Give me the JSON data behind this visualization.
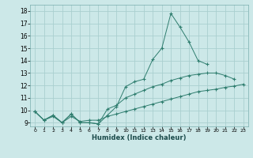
{
  "xlabel": "Humidex (Indice chaleur)",
  "line_color": "#2e7d6e",
  "bg_color": "#cce8e8",
  "grid_color": "#aacfcf",
  "xlim": [
    -0.5,
    23.5
  ],
  "ylim": [
    8.7,
    18.5
  ],
  "xticks": [
    0,
    1,
    2,
    3,
    4,
    5,
    6,
    7,
    8,
    9,
    10,
    11,
    12,
    13,
    14,
    15,
    16,
    17,
    18,
    19,
    20,
    21,
    22,
    23
  ],
  "yticks": [
    9,
    10,
    11,
    12,
    13,
    14,
    15,
    16,
    17,
    18
  ],
  "line1_x": [
    0,
    1,
    2,
    3,
    4,
    5,
    6,
    7,
    8,
    9,
    10,
    11,
    12,
    13,
    14,
    15,
    16,
    17,
    18,
    19
  ],
  "line1_y": [
    9.9,
    9.2,
    9.6,
    9.0,
    9.7,
    9.0,
    9.0,
    8.9,
    9.6,
    10.3,
    11.9,
    12.3,
    12.5,
    14.1,
    15.0,
    17.8,
    16.7,
    15.5,
    14.0,
    13.7
  ],
  "line2_x": [
    0,
    1,
    2,
    3,
    4,
    5,
    6,
    7,
    8,
    9,
    10,
    11,
    12,
    13,
    14,
    15,
    16,
    17,
    18,
    19,
    20,
    21,
    22
  ],
  "line2_y": [
    9.9,
    9.2,
    9.6,
    9.0,
    9.7,
    9.0,
    9.0,
    8.9,
    10.1,
    10.4,
    11.0,
    11.3,
    11.6,
    11.9,
    12.1,
    12.4,
    12.6,
    12.8,
    12.9,
    13.0,
    13.0,
    12.8,
    12.5
  ],
  "line3_x": [
    0,
    1,
    2,
    3,
    4,
    5,
    6,
    7,
    8,
    9,
    10,
    11,
    12,
    13,
    14,
    15,
    16,
    17,
    18,
    19,
    20,
    21,
    22,
    23
  ],
  "line3_y": [
    9.9,
    9.2,
    9.5,
    9.0,
    9.5,
    9.1,
    9.2,
    9.2,
    9.5,
    9.7,
    9.9,
    10.1,
    10.3,
    10.5,
    10.7,
    10.9,
    11.1,
    11.3,
    11.5,
    11.6,
    11.7,
    11.85,
    11.95,
    12.1
  ]
}
